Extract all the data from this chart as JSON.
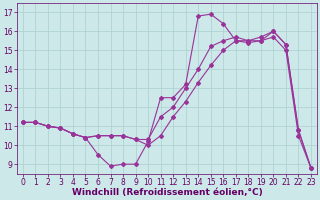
{
  "xlabel": "Windchill (Refroidissement éolien,°C)",
  "background_color": "#cce8e8",
  "line_color": "#993399",
  "xlim": [
    -0.5,
    23.5
  ],
  "ylim": [
    8.5,
    17.5
  ],
  "xticks": [
    0,
    1,
    2,
    3,
    4,
    5,
    6,
    7,
    8,
    9,
    10,
    11,
    12,
    13,
    14,
    15,
    16,
    17,
    18,
    19,
    20,
    21,
    22,
    23
  ],
  "yticks": [
    9,
    10,
    11,
    12,
    13,
    14,
    15,
    16,
    17
  ],
  "line1_x": [
    0,
    1,
    2,
    3,
    4,
    5,
    6,
    7,
    8,
    9,
    10,
    11,
    12,
    13,
    14,
    15,
    16,
    17,
    18,
    19,
    20,
    21,
    22,
    23
  ],
  "line1_y": [
    11.2,
    11.2,
    11.0,
    10.9,
    10.6,
    10.4,
    9.5,
    8.9,
    9.0,
    9.0,
    10.2,
    12.5,
    12.5,
    13.2,
    16.8,
    16.9,
    16.4,
    15.5,
    15.4,
    15.5,
    16.0,
    15.3,
    10.8,
    8.8
  ],
  "line2_x": [
    0,
    1,
    2,
    3,
    4,
    5,
    6,
    7,
    8,
    9,
    10,
    11,
    12,
    13,
    14,
    15,
    16,
    17,
    18,
    19,
    20,
    21,
    22,
    23
  ],
  "line2_y": [
    11.2,
    11.2,
    11.0,
    10.9,
    10.6,
    10.4,
    10.5,
    10.5,
    10.5,
    10.3,
    10.3,
    11.5,
    12.0,
    13.0,
    14.0,
    15.2,
    15.5,
    15.7,
    15.5,
    15.7,
    16.0,
    15.3,
    10.8,
    8.8
  ],
  "line3_x": [
    0,
    1,
    2,
    3,
    4,
    5,
    6,
    7,
    8,
    9,
    10,
    11,
    12,
    13,
    14,
    15,
    16,
    17,
    18,
    19,
    20,
    21,
    22,
    23
  ],
  "line3_y": [
    11.2,
    11.2,
    11.0,
    10.9,
    10.6,
    10.4,
    10.5,
    10.5,
    10.5,
    10.3,
    10.0,
    10.5,
    11.5,
    12.3,
    13.3,
    14.2,
    15.0,
    15.5,
    15.5,
    15.5,
    15.7,
    15.0,
    10.5,
    8.8
  ],
  "marker": "D",
  "markersize": 2.0,
  "linewidth": 0.8,
  "grid_color": "#aacfcf",
  "xlabel_fontsize": 6.5,
  "tick_fontsize": 5.5,
  "tick_color": "#660066"
}
